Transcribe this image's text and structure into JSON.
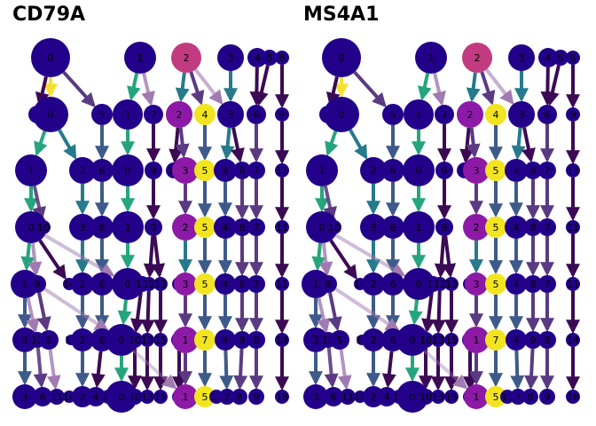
{
  "chart_data": [
    {
      "type": "clustree",
      "title": "CD79A",
      "levels": 7,
      "palette": {
        "low": "#23008a",
        "mid": "#8c1aa6",
        "pink": "#c23b80",
        "high": "#f2e420",
        "edge_green": "#25a57e",
        "edge_teal": "#277a8c",
        "edge_slate": "#3d5a8a",
        "edge_dark": "#3c0a55",
        "edge_purple": "#5a3a82",
        "edge_mauve": "#a07ab0",
        "edge_yellow": "#f5e030"
      },
      "nodes": [
        [
          {
            "label": "0",
            "color": "low",
            "r": 22
          },
          {
            "label": "1",
            "color": "low",
            "r": 18
          },
          {
            "label": "2",
            "color": "pink",
            "r": 17
          },
          {
            "label": "3",
            "color": "low",
            "r": 15
          },
          {
            "label": "4",
            "color": "low",
            "r": 11
          },
          {
            "label": "5",
            "color": "low",
            "r": 9
          },
          {
            "label": "6",
            "color": "low",
            "r": 8
          }
        ],
        [
          {
            "label": "8",
            "color": "low",
            "r": 10
          },
          {
            "label": "0",
            "color": "low",
            "r": 20
          },
          {
            "label": "5",
            "color": "low",
            "r": 12
          },
          {
            "label": "1",
            "color": "low",
            "r": 17
          },
          {
            "label": "7",
            "color": "low",
            "r": 11
          },
          {
            "label": "2",
            "color": "mid",
            "r": 15
          },
          {
            "label": "4",
            "color": "high",
            "r": 12
          },
          {
            "label": "3",
            "color": "low",
            "r": 15
          },
          {
            "label": "6",
            "color": "low",
            "r": 11
          },
          {
            "label": "9",
            "color": "low",
            "r": 8
          }
        ],
        [
          {
            "label": "1",
            "color": "low",
            "r": 18
          },
          {
            "label": "2",
            "color": "low",
            "r": 15
          },
          {
            "label": "6",
            "color": "low",
            "r": 13
          },
          {
            "label": "0",
            "color": "low",
            "r": 18
          },
          {
            "label": "9",
            "color": "low",
            "r": 10
          },
          {
            "label": "10",
            "color": "low",
            "r": 9
          },
          {
            "label": "3",
            "color": "mid",
            "r": 15
          },
          {
            "label": "5",
            "color": "high",
            "r": 12
          },
          {
            "label": "4",
            "color": "low",
            "r": 13
          },
          {
            "label": "8",
            "color": "low",
            "r": 10
          },
          {
            "label": "7",
            "color": "low",
            "r": 10
          },
          {
            "label": "11",
            "color": "low",
            "r": 8
          }
        ],
        [
          {
            "label": "0",
            "color": "low",
            "r": 18
          },
          {
            "label": "10",
            "color": "low",
            "r": 8
          },
          {
            "label": "3",
            "color": "low",
            "r": 15
          },
          {
            "label": "6",
            "color": "low",
            "r": 13
          },
          {
            "label": "1",
            "color": "low",
            "r": 18
          },
          {
            "label": "9",
            "color": "low",
            "r": 10
          },
          {
            "label": "2",
            "color": "mid",
            "r": 15
          },
          {
            "label": "5",
            "color": "high",
            "r": 12
          },
          {
            "label": "4",
            "color": "low",
            "r": 13
          },
          {
            "label": "8",
            "color": "low",
            "r": 10
          },
          {
            "label": "7",
            "color": "low",
            "r": 10
          },
          {
            "label": "11",
            "color": "low",
            "r": 8
          }
        ],
        [
          {
            "label": "1",
            "color": "low",
            "r": 16
          },
          {
            "label": "9",
            "color": "low",
            "r": 10
          },
          {
            "label": "14",
            "color": "low",
            "r": 7
          },
          {
            "label": "2",
            "color": "low",
            "r": 13
          },
          {
            "label": "6",
            "color": "low",
            "r": 13
          },
          {
            "label": "0",
            "color": "low",
            "r": 18
          },
          {
            "label": "10",
            "color": "low",
            "r": 9
          },
          {
            "label": "12",
            "color": "low",
            "r": 8
          },
          {
            "label": "13",
            "color": "low",
            "r": 8
          },
          {
            "label": "8",
            "color": "low",
            "r": 8
          },
          {
            "label": "3",
            "color": "mid",
            "r": 13
          },
          {
            "label": "5",
            "color": "high",
            "r": 12
          },
          {
            "label": "4",
            "color": "low",
            "r": 12
          },
          {
            "label": "8",
            "color": "low",
            "r": 10
          },
          {
            "label": "7",
            "color": "low",
            "r": 10
          },
          {
            "label": "11",
            "color": "low",
            "r": 8
          }
        ],
        [
          {
            "label": "3",
            "color": "low",
            "r": 14
          },
          {
            "label": "12",
            "color": "low",
            "r": 9
          },
          {
            "label": "5",
            "color": "low",
            "r": 11
          },
          {
            "label": "16",
            "color": "low",
            "r": 6
          },
          {
            "label": "2",
            "color": "low",
            "r": 13
          },
          {
            "label": "6",
            "color": "low",
            "r": 13
          },
          {
            "label": "0",
            "color": "low",
            "r": 18
          },
          {
            "label": "10",
            "color": "low",
            "r": 9
          },
          {
            "label": "13",
            "color": "low",
            "r": 8
          },
          {
            "label": "15",
            "color": "low",
            "r": 8
          },
          {
            "label": "11",
            "color": "low",
            "r": 9
          },
          {
            "label": "1",
            "color": "mid",
            "r": 15
          },
          {
            "label": "7",
            "color": "high",
            "r": 12
          },
          {
            "label": "4",
            "color": "low",
            "r": 12
          },
          {
            "label": "9",
            "color": "low",
            "r": 10
          },
          {
            "label": "8",
            "color": "low",
            "r": 10
          },
          {
            "label": "14",
            "color": "low",
            "r": 8
          }
        ],
        [
          {
            "label": "3",
            "color": "low",
            "r": 14
          },
          {
            "label": "6",
            "color": "low",
            "r": 11
          },
          {
            "label": "11",
            "color": "low",
            "r": 9
          },
          {
            "label": "14",
            "color": "low",
            "r": 7
          },
          {
            "label": "2",
            "color": "low",
            "r": 12
          },
          {
            "label": "4",
            "color": "low",
            "r": 11
          },
          {
            "label": "16",
            "color": "low",
            "r": 8
          },
          {
            "label": "0",
            "color": "low",
            "r": 18
          },
          {
            "label": "10",
            "color": "low",
            "r": 9
          },
          {
            "label": "13",
            "color": "low",
            "r": 8
          },
          {
            "label": "15",
            "color": "low",
            "r": 8
          },
          {
            "label": "12",
            "color": "low",
            "r": 8
          },
          {
            "label": "1",
            "color": "mid",
            "r": 14
          },
          {
            "label": "5",
            "color": "high",
            "r": 12
          },
          {
            "label": "17",
            "color": "low",
            "r": 8
          },
          {
            "label": "7",
            "color": "low",
            "r": 9
          },
          {
            "label": "8",
            "color": "low",
            "r": 9
          },
          {
            "label": "9",
            "color": "low",
            "r": 9
          },
          {
            "label": "18",
            "color": "low",
            "r": 8
          }
        ]
      ]
    },
    {
      "type": "clustree",
      "title": "MS4A1",
      "levels": 7,
      "palette": {
        "low": "#23008a",
        "mid": "#8c1aa6",
        "pink": "#c23b80",
        "high": "#f2e420",
        "edge_green": "#25a57e",
        "edge_teal": "#277a8c",
        "edge_slate": "#3d5a8a",
        "edge_dark": "#3c0a55",
        "edge_purple": "#5a3a82",
        "edge_mauve": "#a07ab0",
        "edge_yellow": "#f5e030"
      },
      "nodes": [
        [
          {
            "label": "0",
            "color": "low",
            "r": 22
          },
          {
            "label": "1",
            "color": "low",
            "r": 18
          },
          {
            "label": "2",
            "color": "pink",
            "r": 17
          },
          {
            "label": "3",
            "color": "low",
            "r": 15
          },
          {
            "label": "4",
            "color": "low",
            "r": 11
          },
          {
            "label": "5",
            "color": "low",
            "r": 9
          },
          {
            "label": "6",
            "color": "low",
            "r": 8
          }
        ],
        [
          {
            "label": "8",
            "color": "low",
            "r": 10
          },
          {
            "label": "0",
            "color": "low",
            "r": 20
          },
          {
            "label": "5",
            "color": "low",
            "r": 12
          },
          {
            "label": "1",
            "color": "low",
            "r": 17
          },
          {
            "label": "7",
            "color": "low",
            "r": 11
          },
          {
            "label": "2",
            "color": "mid",
            "r": 15
          },
          {
            "label": "4",
            "color": "high",
            "r": 12
          },
          {
            "label": "3",
            "color": "low",
            "r": 15
          },
          {
            "label": "6",
            "color": "low",
            "r": 11
          },
          {
            "label": "9",
            "color": "low",
            "r": 8
          }
        ],
        [
          {
            "label": "1",
            "color": "low",
            "r": 18
          },
          {
            "label": "2",
            "color": "low",
            "r": 15
          },
          {
            "label": "6",
            "color": "low",
            "r": 13
          },
          {
            "label": "0",
            "color": "low",
            "r": 18
          },
          {
            "label": "9",
            "color": "low",
            "r": 10
          },
          {
            "label": "10",
            "color": "low",
            "r": 9
          },
          {
            "label": "3",
            "color": "mid",
            "r": 15
          },
          {
            "label": "5",
            "color": "high",
            "r": 12
          },
          {
            "label": "4",
            "color": "low",
            "r": 13
          },
          {
            "label": "8",
            "color": "low",
            "r": 10
          },
          {
            "label": "7",
            "color": "low",
            "r": 10
          },
          {
            "label": "11",
            "color": "low",
            "r": 8
          }
        ],
        [
          {
            "label": "0",
            "color": "low",
            "r": 18
          },
          {
            "label": "10",
            "color": "low",
            "r": 8
          },
          {
            "label": "3",
            "color": "low",
            "r": 15
          },
          {
            "label": "6",
            "color": "low",
            "r": 13
          },
          {
            "label": "1",
            "color": "low",
            "r": 18
          },
          {
            "label": "9",
            "color": "low",
            "r": 10
          },
          {
            "label": "2",
            "color": "mid",
            "r": 15
          },
          {
            "label": "5",
            "color": "high",
            "r": 12
          },
          {
            "label": "4",
            "color": "low",
            "r": 13
          },
          {
            "label": "8",
            "color": "low",
            "r": 10
          },
          {
            "label": "7",
            "color": "low",
            "r": 10
          },
          {
            "label": "11",
            "color": "low",
            "r": 8
          }
        ],
        [
          {
            "label": "1",
            "color": "low",
            "r": 16
          },
          {
            "label": "9",
            "color": "low",
            "r": 10
          },
          {
            "label": "14",
            "color": "low",
            "r": 7
          },
          {
            "label": "2",
            "color": "low",
            "r": 13
          },
          {
            "label": "6",
            "color": "low",
            "r": 13
          },
          {
            "label": "0",
            "color": "low",
            "r": 18
          },
          {
            "label": "10",
            "color": "low",
            "r": 9
          },
          {
            "label": "12",
            "color": "low",
            "r": 8
          },
          {
            "label": "13",
            "color": "low",
            "r": 8
          },
          {
            "label": "8",
            "color": "low",
            "r": 8
          },
          {
            "label": "3",
            "color": "mid",
            "r": 13
          },
          {
            "label": "5",
            "color": "high",
            "r": 12
          },
          {
            "label": "4",
            "color": "low",
            "r": 12
          },
          {
            "label": "8",
            "color": "low",
            "r": 10
          },
          {
            "label": "7",
            "color": "low",
            "r": 10
          },
          {
            "label": "11",
            "color": "low",
            "r": 8
          }
        ],
        [
          {
            "label": "3",
            "color": "low",
            "r": 14
          },
          {
            "label": "12",
            "color": "low",
            "r": 9
          },
          {
            "label": "5",
            "color": "low",
            "r": 11
          },
          {
            "label": "16",
            "color": "low",
            "r": 6
          },
          {
            "label": "2",
            "color": "low",
            "r": 13
          },
          {
            "label": "6",
            "color": "low",
            "r": 13
          },
          {
            "label": "0",
            "color": "low",
            "r": 18
          },
          {
            "label": "10",
            "color": "low",
            "r": 9
          },
          {
            "label": "13",
            "color": "low",
            "r": 8
          },
          {
            "label": "15",
            "color": "low",
            "r": 8
          },
          {
            "label": "11",
            "color": "low",
            "r": 9
          },
          {
            "label": "1",
            "color": "mid",
            "r": 15
          },
          {
            "label": "7",
            "color": "high",
            "r": 12
          },
          {
            "label": "4",
            "color": "low",
            "r": 12
          },
          {
            "label": "9",
            "color": "low",
            "r": 10
          },
          {
            "label": "8",
            "color": "low",
            "r": 10
          },
          {
            "label": "14",
            "color": "low",
            "r": 8
          }
        ],
        [
          {
            "label": "3",
            "color": "low",
            "r": 14
          },
          {
            "label": "6",
            "color": "low",
            "r": 11
          },
          {
            "label": "11",
            "color": "low",
            "r": 9
          },
          {
            "label": "14",
            "color": "low",
            "r": 7
          },
          {
            "label": "2",
            "color": "low",
            "r": 12
          },
          {
            "label": "4",
            "color": "low",
            "r": 11
          },
          {
            "label": "16",
            "color": "low",
            "r": 8
          },
          {
            "label": "0",
            "color": "low",
            "r": 18
          },
          {
            "label": "10",
            "color": "low",
            "r": 9
          },
          {
            "label": "13",
            "color": "low",
            "r": 8
          },
          {
            "label": "15",
            "color": "low",
            "r": 8
          },
          {
            "label": "12",
            "color": "low",
            "r": 8
          },
          {
            "label": "1",
            "color": "mid",
            "r": 14
          },
          {
            "label": "5",
            "color": "high",
            "r": 12
          },
          {
            "label": "17",
            "color": "low",
            "r": 8
          },
          {
            "label": "7",
            "color": "low",
            "r": 9
          },
          {
            "label": "8",
            "color": "low",
            "r": 9
          },
          {
            "label": "9",
            "color": "low",
            "r": 9
          },
          {
            "label": "18",
            "color": "low",
            "r": 8
          }
        ]
      ]
    }
  ]
}
